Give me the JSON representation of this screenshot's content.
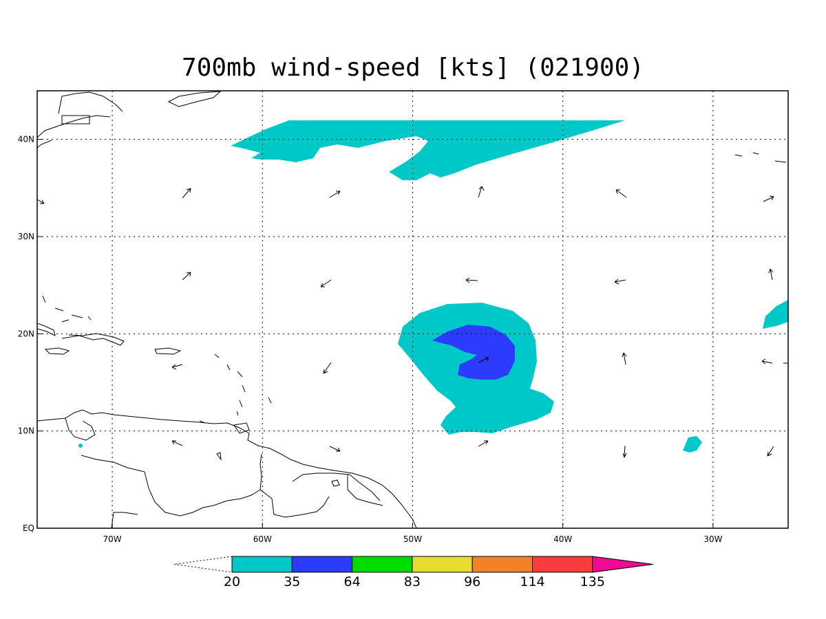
{
  "title": "700mb wind-speed [kts] (021900)",
  "map": {
    "lon_range": [
      -75,
      -25
    ],
    "lat_range": [
      0,
      45
    ],
    "lon_ticks": [
      {
        "lon": -70,
        "label": "70W"
      },
      {
        "lon": -60,
        "label": "60W"
      },
      {
        "lon": -50,
        "label": "50W"
      },
      {
        "lon": -40,
        "label": "40W"
      },
      {
        "lon": -30,
        "label": "30W"
      }
    ],
    "lat_ticks": [
      {
        "lat": 40,
        "label": "40N"
      },
      {
        "lat": 30,
        "label": "30N"
      },
      {
        "lat": 20,
        "label": "20N"
      },
      {
        "lat": 10,
        "label": "10N"
      },
      {
        "lat": 0,
        "label": "EQ"
      }
    ],
    "grid": true
  },
  "colorbar": {
    "levels": [
      "20",
      "35",
      "64",
      "83",
      "96",
      "114",
      "135"
    ],
    "colors": [
      "#00c8c8",
      "#2b3cff",
      "#00dc00",
      "#e6dc32",
      "#f08228",
      "#fa3c3c",
      "#f00a96"
    ]
  },
  "fill_colors": {
    "low": "#00c8c8",
    "mid": "#2b3cff"
  }
}
